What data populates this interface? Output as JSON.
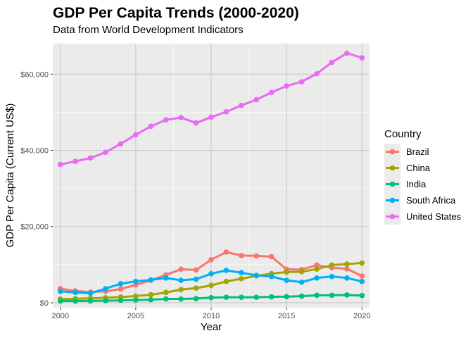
{
  "chart_data": {
    "type": "line",
    "title": "GDP Per Capita Trends (2000-2020)",
    "subtitle": "Data from World Development Indicators",
    "xlabel": "Year",
    "ylabel": "GDP Per Capita (Current US$)",
    "xlim": [
      1999.5,
      2020.5
    ],
    "ylim": [
      -1300,
      68000
    ],
    "x_ticks": [
      2000,
      2005,
      2010,
      2015,
      2020
    ],
    "x_tick_labels": [
      "2000",
      "2005",
      "2010",
      "2015",
      "2020"
    ],
    "y_ticks": [
      0,
      20000,
      40000,
      60000
    ],
    "y_tick_labels": [
      "$0",
      "$20,000",
      "$40,000",
      "$60,000"
    ],
    "grid": true,
    "legend": {
      "title": "Country",
      "position": "right"
    },
    "x": [
      2000,
      2001,
      2002,
      2003,
      2004,
      2005,
      2006,
      2007,
      2008,
      2009,
      2010,
      2011,
      2012,
      2013,
      2014,
      2015,
      2016,
      2017,
      2018,
      2019,
      2020
    ],
    "series": [
      {
        "name": "Brazil",
        "color": "#F8766D",
        "values": [
          3700,
          3100,
          2800,
          3000,
          3600,
          4700,
          5900,
          7300,
          8800,
          8600,
          11300,
          13300,
          12400,
          12300,
          12100,
          8800,
          8700,
          9900,
          9200,
          8900,
          7000
        ]
      },
      {
        "name": "China",
        "color": "#A3A500",
        "values": [
          950,
          1050,
          1150,
          1300,
          1500,
          1750,
          2100,
          2700,
          3450,
          3850,
          4550,
          5600,
          6300,
          7050,
          7650,
          8050,
          8150,
          8850,
          9900,
          10150,
          10450
        ]
      },
      {
        "name": "India",
        "color": "#00BF7D",
        "values": [
          440,
          450,
          470,
          550,
          620,
          710,
          800,
          1020,
          1000,
          1100,
          1350,
          1450,
          1450,
          1450,
          1560,
          1600,
          1730,
          1960,
          1970,
          2050,
          1900
        ]
      },
      {
        "name": "South Africa",
        "color": "#00B0F6",
        "values": [
          3000,
          2700,
          2500,
          3700,
          5000,
          5600,
          6000,
          6500,
          5900,
          6200,
          7600,
          8500,
          7900,
          7200,
          6900,
          5900,
          5400,
          6500,
          6900,
          6500,
          5600
        ]
      },
      {
        "name": "United States",
        "color": "#E76BF3",
        "values": [
          36300,
          37100,
          38000,
          39500,
          41700,
          44100,
          46300,
          48000,
          48600,
          47200,
          48700,
          50100,
          51800,
          53300,
          55200,
          56900,
          58000,
          60100,
          63100,
          65500,
          64300
        ]
      }
    ]
  }
}
